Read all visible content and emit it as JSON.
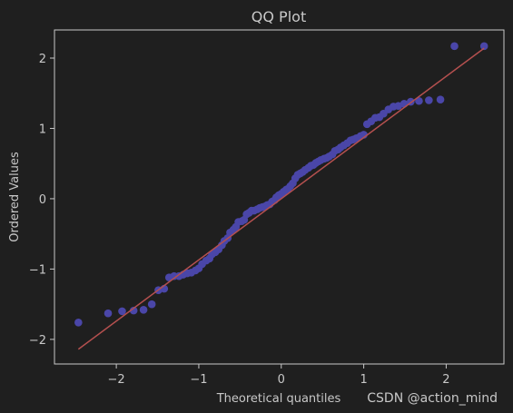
{
  "chart_data": {
    "type": "scatter",
    "title": "QQ Plot",
    "xlabel": "Theoretical quantiles",
    "ylabel": "Ordered Values",
    "watermark": "CSDN @action_mind",
    "xlim": [
      -2.75,
      2.7
    ],
    "ylim": [
      -2.35,
      2.4
    ],
    "xticks": [
      -2,
      -1,
      0,
      1,
      2
    ],
    "xtick_labels": [
      "−2",
      "−1",
      "0",
      "1",
      "2"
    ],
    "yticks": [
      -2,
      -1,
      0,
      1,
      2
    ],
    "ytick_labels": [
      "−2",
      "−1",
      "0",
      "1",
      "2"
    ],
    "grid": false,
    "colors": {
      "background": "#1f1f1f",
      "axes": "#c8c8c8",
      "text": "#c8c8c8",
      "points": "#4a46a8",
      "fit_line": "#b5504f"
    },
    "fit_line": {
      "x": [
        -2.46,
        2.46
      ],
      "y": [
        -2.14,
        2.14
      ]
    },
    "series": [
      {
        "x": [
          -2.46,
          -2.1,
          -1.93,
          -1.79,
          -1.67,
          -1.57,
          -1.49,
          -1.42,
          -1.36,
          -1.3,
          -1.24,
          -1.19,
          -1.14,
          -1.09,
          -1.04,
          -1.0,
          -0.96,
          -0.91,
          -0.87,
          -0.84,
          -0.8,
          -0.76,
          -0.72,
          -0.69,
          -0.65,
          -0.62,
          -0.58,
          -0.55,
          -0.52,
          -0.48,
          -0.45,
          -0.42,
          -0.39,
          -0.36,
          -0.33,
          -0.29,
          -0.26,
          -0.23,
          -0.2,
          -0.17,
          -0.14,
          -0.11,
          -0.08,
          -0.06,
          -0.03,
          0.0,
          0.03,
          0.06,
          0.08,
          0.11,
          0.14,
          0.17,
          0.2,
          0.23,
          0.26,
          0.29,
          0.33,
          0.36,
          0.39,
          0.42,
          0.45,
          0.48,
          0.52,
          0.55,
          0.58,
          0.62,
          0.65,
          0.69,
          0.72,
          0.76,
          0.8,
          0.84,
          0.87,
          0.91,
          0.96,
          1.0,
          1.04,
          1.09,
          1.14,
          1.19,
          1.24,
          1.3,
          1.36,
          1.42,
          1.49,
          1.57,
          1.67,
          1.79,
          1.93,
          2.1,
          2.46
        ],
        "y": [
          -1.76,
          -1.63,
          -1.6,
          -1.59,
          -1.58,
          -1.5,
          -1.3,
          -1.28,
          -1.12,
          -1.1,
          -1.1,
          -1.08,
          -1.06,
          -1.05,
          -1.02,
          -0.99,
          -0.93,
          -0.88,
          -0.85,
          -0.79,
          -0.76,
          -0.72,
          -0.66,
          -0.6,
          -0.56,
          -0.48,
          -0.44,
          -0.4,
          -0.33,
          -0.32,
          -0.3,
          -0.22,
          -0.2,
          -0.17,
          -0.17,
          -0.15,
          -0.13,
          -0.12,
          -0.11,
          -0.09,
          -0.08,
          -0.04,
          -0.02,
          0.02,
          0.05,
          0.07,
          0.1,
          0.13,
          0.14,
          0.18,
          0.22,
          0.29,
          0.34,
          0.36,
          0.38,
          0.41,
          0.44,
          0.47,
          0.48,
          0.51,
          0.53,
          0.55,
          0.57,
          0.58,
          0.6,
          0.63,
          0.68,
          0.7,
          0.73,
          0.76,
          0.79,
          0.83,
          0.84,
          0.86,
          0.89,
          0.91,
          1.06,
          1.1,
          1.15,
          1.16,
          1.21,
          1.27,
          1.31,
          1.32,
          1.35,
          1.38,
          1.39,
          1.4,
          1.41,
          2.17,
          2.17
        ]
      }
    ]
  }
}
